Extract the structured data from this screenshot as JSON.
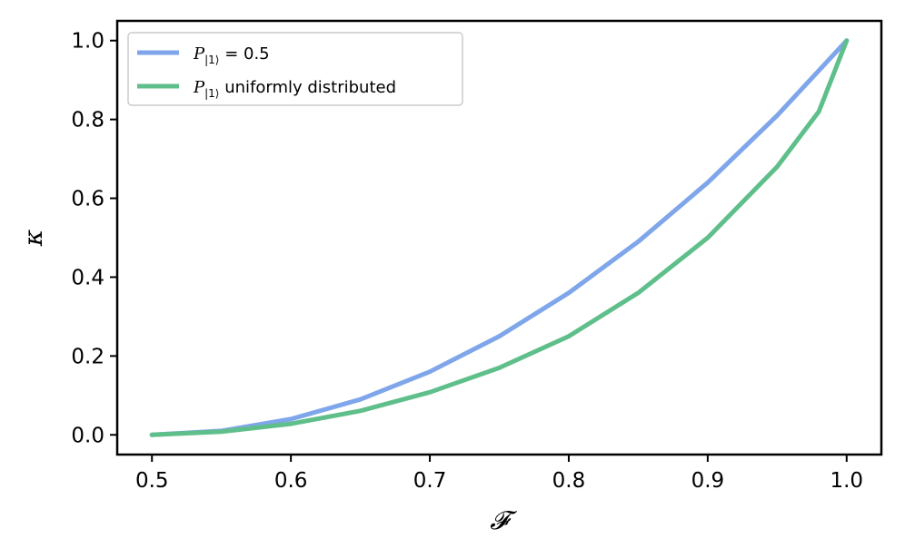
{
  "chart_data": {
    "type": "line",
    "xlabel": "𝓕",
    "ylabel": "κ",
    "xlim": [
      0.475,
      1.025
    ],
    "ylim": [
      -0.05,
      1.05
    ],
    "xticks": [
      0.5,
      0.6,
      0.7,
      0.8,
      0.9,
      1.0
    ],
    "yticks": [
      0.0,
      0.2,
      0.4,
      0.6,
      0.8,
      1.0
    ],
    "xtick_labels": [
      "0.5",
      "0.6",
      "0.7",
      "0.8",
      "0.9",
      "1.0"
    ],
    "ytick_labels": [
      "0.0",
      "0.2",
      "0.4",
      "0.6",
      "0.8",
      "1.0"
    ],
    "grid": false,
    "legend_position": "top-left",
    "series": [
      {
        "legend_main": "P",
        "legend_sub": "|1⟩",
        "legend_rest": " = 0.5",
        "color": "#7fa6ea",
        "x": [
          0.5,
          0.55,
          0.6,
          0.65,
          0.7,
          0.75,
          0.8,
          0.85,
          0.9,
          0.95,
          1.0
        ],
        "y": [
          0.0,
          0.01,
          0.04,
          0.09,
          0.16,
          0.25,
          0.36,
          0.49,
          0.64,
          0.81,
          1.0
        ]
      },
      {
        "legend_main": "P",
        "legend_sub": "|1⟩",
        "legend_rest": " uniformly distributed",
        "color": "#5fbf8a",
        "x": [
          0.5,
          0.55,
          0.6,
          0.65,
          0.7,
          0.75,
          0.8,
          0.85,
          0.9,
          0.95,
          0.98,
          1.0
        ],
        "y": [
          0.0,
          0.008,
          0.028,
          0.061,
          0.108,
          0.17,
          0.25,
          0.36,
          0.5,
          0.68,
          0.82,
          1.0
        ]
      }
    ]
  }
}
